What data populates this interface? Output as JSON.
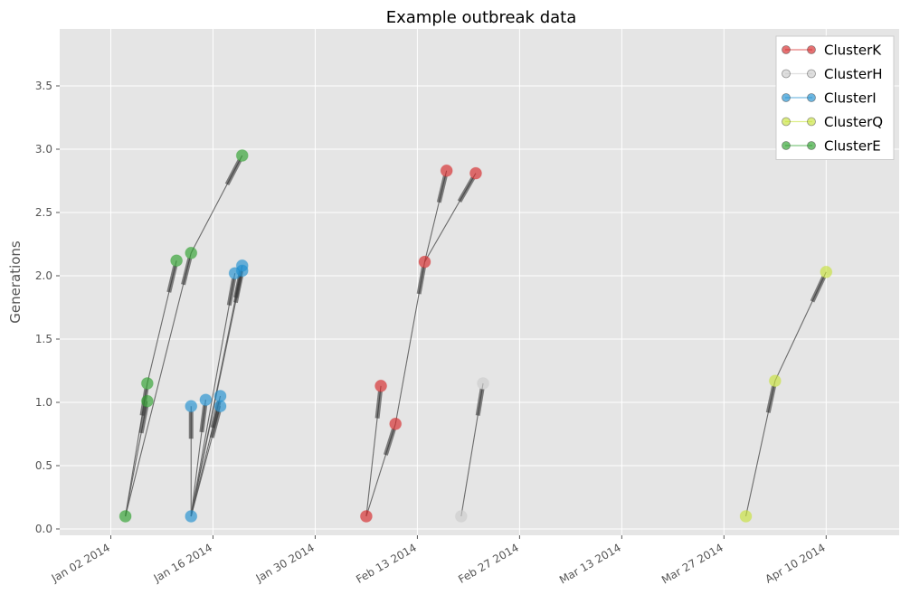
{
  "chart_data": {
    "type": "scatter",
    "title": "Example outbreak data",
    "xlabel": "",
    "ylabel": "Generations",
    "xlim": [
      "2013-12-26",
      "2014-04-20"
    ],
    "ylim": [
      -0.05,
      3.95
    ],
    "grid": true,
    "legend_position": "top-right",
    "x_ticks": [
      "2014-01-02",
      "2014-01-16",
      "2014-01-30",
      "2014-02-13",
      "2014-02-27",
      "2014-03-13",
      "2014-03-27",
      "2014-04-10"
    ],
    "x_tick_labels": [
      "Jan 02 2014",
      "Jan 16 2014",
      "Jan 30 2014",
      "Feb 13 2014",
      "Feb 27 2014",
      "Mar 13 2014",
      "Mar 27 2014",
      "Apr 10 2014"
    ],
    "y_ticks": [
      0.0,
      0.5,
      1.0,
      1.5,
      2.0,
      2.5,
      3.0,
      3.5
    ],
    "y_tick_labels": [
      "0.0",
      "0.5",
      "1.0",
      "1.5",
      "2.0",
      "2.5",
      "3.0",
      "3.5"
    ],
    "series": [
      {
        "name": "ClusterK",
        "color": "#d62728",
        "points": [
          {
            "id": "k0",
            "date": "2014-02-06",
            "y": 0.1
          },
          {
            "id": "k1",
            "date": "2014-02-08",
            "y": 1.13
          },
          {
            "id": "k2",
            "date": "2014-02-10",
            "y": 0.83
          },
          {
            "id": "k3",
            "date": "2014-02-14",
            "y": 2.11
          },
          {
            "id": "k4",
            "date": "2014-02-17",
            "y": 2.83
          },
          {
            "id": "k5",
            "date": "2014-02-21",
            "y": 2.81
          }
        ],
        "edges": [
          [
            "k0",
            "k1"
          ],
          [
            "k0",
            "k2"
          ],
          [
            "k2",
            "k3"
          ],
          [
            "k3",
            "k4"
          ],
          [
            "k3",
            "k5"
          ]
        ]
      },
      {
        "name": "ClusterH",
        "color": "#cccccc",
        "points": [
          {
            "id": "h0",
            "date": "2014-02-19",
            "y": 0.1
          },
          {
            "id": "h1",
            "date": "2014-02-22",
            "y": 1.15
          }
        ],
        "edges": [
          [
            "h0",
            "h1"
          ]
        ]
      },
      {
        "name": "ClusterI",
        "color": "#1f8fcf",
        "points": [
          {
            "id": "i0",
            "date": "2014-01-13",
            "y": 0.1
          },
          {
            "id": "i1",
            "date": "2014-01-13",
            "y": 0.97
          },
          {
            "id": "i2",
            "date": "2014-01-15",
            "y": 1.02
          },
          {
            "id": "i3",
            "date": "2014-01-17",
            "y": 1.05
          },
          {
            "id": "i4",
            "date": "2014-01-17",
            "y": 0.97
          },
          {
            "id": "i5",
            "date": "2014-01-19",
            "y": 2.02
          },
          {
            "id": "i6",
            "date": "2014-01-20",
            "y": 2.08
          },
          {
            "id": "i7",
            "date": "2014-01-20",
            "y": 2.04
          }
        ],
        "edges": [
          [
            "i0",
            "i1"
          ],
          [
            "i0",
            "i2"
          ],
          [
            "i0",
            "i3"
          ],
          [
            "i0",
            "i4"
          ],
          [
            "i0",
            "i5"
          ],
          [
            "i0",
            "i6"
          ],
          [
            "i0",
            "i7"
          ]
        ]
      },
      {
        "name": "ClusterQ",
        "color": "#c7e23a",
        "points": [
          {
            "id": "q0",
            "date": "2014-03-30",
            "y": 0.1
          },
          {
            "id": "q1",
            "date": "2014-04-03",
            "y": 1.17
          },
          {
            "id": "q2",
            "date": "2014-04-10",
            "y": 2.03
          }
        ],
        "edges": [
          [
            "q0",
            "q1"
          ],
          [
            "q1",
            "q2"
          ]
        ]
      },
      {
        "name": "ClusterE",
        "color": "#2ca02c",
        "points": [
          {
            "id": "e0",
            "date": "2014-01-04",
            "y": 0.1
          },
          {
            "id": "e1",
            "date": "2014-01-07",
            "y": 1.15
          },
          {
            "id": "e2",
            "date": "2014-01-07",
            "y": 1.01
          },
          {
            "id": "e3",
            "date": "2014-01-11",
            "y": 2.12
          },
          {
            "id": "e4",
            "date": "2014-01-13",
            "y": 2.18
          },
          {
            "id": "e5",
            "date": "2014-01-20",
            "y": 2.95
          }
        ],
        "edges": [
          [
            "e0",
            "e1"
          ],
          [
            "e0",
            "e2"
          ],
          [
            "e1",
            "e3"
          ],
          [
            "e0",
            "e4"
          ],
          [
            "e4",
            "e5"
          ]
        ]
      }
    ]
  }
}
